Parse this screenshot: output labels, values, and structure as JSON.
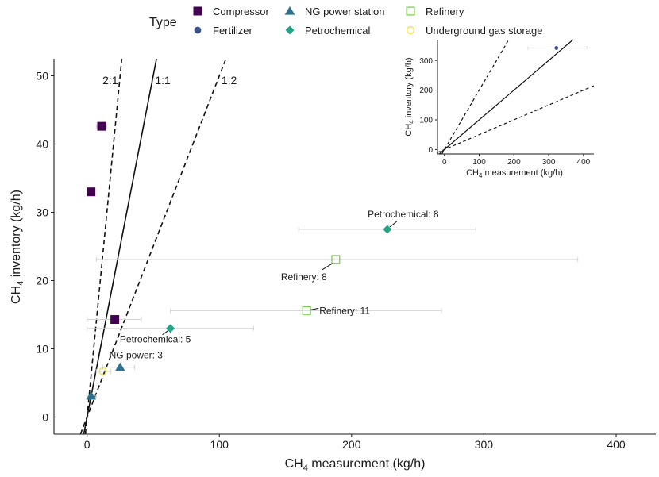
{
  "legend": {
    "title": "Type",
    "items": [
      {
        "label": "Compressor",
        "shape": "square-filled",
        "color": "#440154"
      },
      {
        "label": "Fertilizer",
        "shape": "circle-filled",
        "color": "#3b528b"
      },
      {
        "label": "NG power station",
        "shape": "triangle-filled",
        "color": "#2c728e"
      },
      {
        "label": "Petrochemical",
        "shape": "diamond-filled",
        "color": "#21a585"
      },
      {
        "label": "Refinery",
        "shape": "square-open",
        "color": "#7ad151"
      },
      {
        "label": "Underground gas storage",
        "shape": "circle-open",
        "color": "#f2e33a"
      }
    ]
  },
  "chart_data": [
    {
      "type": "scatter",
      "panel": "main",
      "xlabel_prefix": "CH",
      "xlabel_sub": "4",
      "xlabel_suffix": " measurement (kg/h)",
      "ylabel_prefix": "CH",
      "ylabel_sub": "4",
      "ylabel_suffix": " inventory (kg/h)",
      "xlim": [
        -25,
        430
      ],
      "ylim": [
        -2.5,
        52.5
      ],
      "x_ticks": [
        0,
        100,
        200,
        300,
        400
      ],
      "y_ticks": [
        0,
        10,
        20,
        30,
        40,
        50
      ],
      "reference_lines": [
        {
          "label": "2:1",
          "slope": 2,
          "style": "dashed"
        },
        {
          "label": "1:1",
          "slope": 1,
          "style": "solid"
        },
        {
          "label": "1:2",
          "slope": 0.5,
          "style": "dashed"
        }
      ],
      "points": [
        {
          "type": "Compressor",
          "x": 11,
          "y": 42.6,
          "xerr": [
            7,
            15
          ]
        },
        {
          "type": "Compressor",
          "x": 3,
          "y": 33,
          "xerr": null
        },
        {
          "type": "Compressor",
          "x": 21,
          "y": 14.3,
          "xerr": [
            0,
            41
          ]
        },
        {
          "type": "Petrochemical",
          "x": 227,
          "y": 27.5,
          "xerr": [
            160,
            294
          ],
          "label": "Petrochemical: 8"
        },
        {
          "type": "Refinery",
          "x": 188,
          "y": 23.1,
          "xerr": [
            7,
            371
          ],
          "label": "Refinery: 8"
        },
        {
          "type": "Refinery",
          "x": 166,
          "y": 15.6,
          "xerr": [
            63,
            268
          ],
          "label": "Refinery: 11"
        },
        {
          "type": "Petrochemical",
          "x": 63,
          "y": 13,
          "xerr": [
            0,
            126
          ],
          "label": "Petrochemical: 5"
        },
        {
          "type": "NG power station",
          "x": 25,
          "y": 7.3,
          "xerr": [
            12,
            36
          ],
          "label": "NG power: 3"
        },
        {
          "type": "Underground gas storage",
          "x": 12,
          "y": 6.7,
          "xerr": [
            7,
            18
          ]
        },
        {
          "type": "NG power station",
          "x": 3,
          "y": 3.1,
          "xerr": [
            0,
            7
          ]
        }
      ]
    },
    {
      "type": "scatter",
      "panel": "inset",
      "xlabel_prefix": "CH",
      "xlabel_sub": "4",
      "xlabel_suffix": " measurement (kg/h)",
      "ylabel_prefix": "CH",
      "ylabel_sub": "4",
      "ylabel_suffix": " inventory (kg/h)",
      "xlim": [
        -20,
        430
      ],
      "ylim": [
        -15,
        370
      ],
      "x_ticks": [
        0,
        100,
        200,
        300,
        400
      ],
      "y_ticks": [
        0,
        100,
        200,
        300
      ],
      "reference_lines": [
        {
          "slope": 2,
          "style": "dashed"
        },
        {
          "slope": 1,
          "style": "solid"
        },
        {
          "slope": 0.5,
          "style": "dashed"
        }
      ],
      "points": [
        {
          "type": "Fertilizer",
          "x": 322,
          "y": 342,
          "xerr": [
            240,
            410
          ]
        }
      ]
    }
  ]
}
